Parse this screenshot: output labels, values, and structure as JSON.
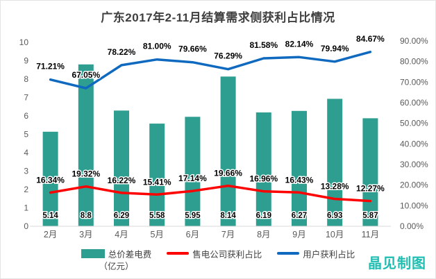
{
  "title": "广东2017年2-11月结算需求侧获利占比情况",
  "watermark": "晶见制图",
  "legend": {
    "bar_label": "总价差电费",
    "bar_sublabel": "（亿元）",
    "sales_label": "售电公司获利占比",
    "user_label": "用户获利占比"
  },
  "colors": {
    "bar": "#2E9E90",
    "sales_line": "#FF0000",
    "user_line": "#0F6ABF",
    "watermark": "#20BEB2",
    "axis_text": "#595959",
    "title_text": "#3F3F3F",
    "baseline": "#D9D9D9"
  },
  "chart_data": {
    "type": "bar",
    "title": "广东2017年2-11月结算需求侧获利占比情况",
    "categories": [
      "2月",
      "3月",
      "4月",
      "5月",
      "6月",
      "7月",
      "8月",
      "9月",
      "10月",
      "11月"
    ],
    "series": [
      {
        "name": "总价差电费（亿元）",
        "type": "bar",
        "axis": "left",
        "values": [
          5.14,
          8.8,
          6.29,
          5.58,
          5.95,
          8.14,
          6.19,
          6.27,
          6.93,
          5.87
        ],
        "labels": [
          "5.14",
          "8.8",
          "6.29",
          "5.58",
          "5.95",
          "8.14",
          "6.19",
          "6.27",
          "6.93",
          "5.87"
        ]
      },
      {
        "name": "售电公司获利占比",
        "type": "line",
        "axis": "right",
        "values": [
          16.34,
          19.32,
          16.22,
          15.41,
          17.14,
          19.66,
          16.96,
          16.43,
          13.28,
          12.27
        ],
        "labels": [
          "16.34%",
          "19.32%",
          "16.22%",
          "15.41%",
          "17.14%",
          "19.66%",
          "16.96%",
          "16.43%",
          "13.28%",
          "12.27%"
        ]
      },
      {
        "name": "用户获利占比",
        "type": "line",
        "axis": "right",
        "values": [
          71.21,
          67.05,
          78.22,
          81.0,
          79.66,
          76.29,
          81.58,
          82.14,
          79.94,
          84.67
        ],
        "labels": [
          "71.21%",
          "67.05%",
          "78.22%",
          "81.00%",
          "79.66%",
          "76.29%",
          "81.58%",
          "82.14%",
          "79.94%",
          "84.67%"
        ]
      }
    ],
    "left_axis": {
      "min": 0,
      "max": 10,
      "ticks": [
        "0",
        "1",
        "2",
        "3",
        "4",
        "5",
        "6",
        "7",
        "8",
        "9",
        "10"
      ]
    },
    "right_axis": {
      "min": 0,
      "max": 90,
      "ticks": [
        "0.00%",
        "10.00%",
        "20.00%",
        "30.00%",
        "40.00%",
        "50.00%",
        "60.00%",
        "70.00%",
        "80.00%",
        "90.00%"
      ]
    },
    "grid": false,
    "legend_position": "bottom"
  }
}
